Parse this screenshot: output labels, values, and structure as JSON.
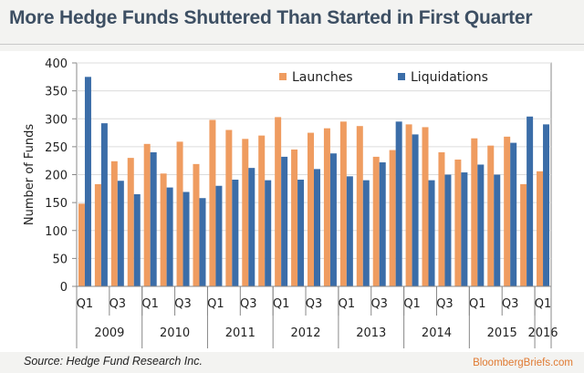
{
  "header": {
    "title": "More Hedge Funds Shuttered Than Started in First Quarter"
  },
  "footer": {
    "source": "Source: Hedge Fund Research Inc.",
    "brand": "BloombergBriefs.com"
  },
  "colors": {
    "launches": "#ef9c60",
    "liquidations": "#3b6da8",
    "axis": "#888888",
    "grid": "#dcdcdc"
  },
  "chart_data": {
    "type": "bar",
    "ylabel": "Number of Funds",
    "ylim": [
      0,
      400
    ],
    "yticks": [
      0,
      50,
      100,
      150,
      200,
      250,
      300,
      350,
      400
    ],
    "grid": true,
    "legend_position": "top-right",
    "categories": [
      "2009 Q1",
      "2009 Q2",
      "2009 Q3",
      "2009 Q4",
      "2010 Q1",
      "2010 Q2",
      "2010 Q3",
      "2010 Q4",
      "2011 Q1",
      "2011 Q2",
      "2011 Q3",
      "2011 Q4",
      "2012 Q1",
      "2012 Q2",
      "2012 Q3",
      "2012 Q4",
      "2013 Q1",
      "2013 Q2",
      "2013 Q3",
      "2013 Q4",
      "2014 Q1",
      "2014 Q2",
      "2014 Q3",
      "2014 Q4",
      "2015 Q1",
      "2015 Q2",
      "2015 Q3",
      "2015 Q4",
      "2016 Q1"
    ],
    "quarter_labels": [
      "Q1",
      "",
      "Q3",
      "",
      "Q1",
      "",
      "Q3",
      "",
      "Q1",
      "",
      "Q3",
      "",
      "Q1",
      "",
      "Q3",
      "",
      "Q1",
      "",
      "Q3",
      "",
      "Q1",
      "",
      "Q3",
      "",
      "Q1",
      "",
      "Q3",
      "",
      "Q1"
    ],
    "years": [
      {
        "label": "2009",
        "count": 4
      },
      {
        "label": "2010",
        "count": 4
      },
      {
        "label": "2011",
        "count": 4
      },
      {
        "label": "2012",
        "count": 4
      },
      {
        "label": "2013",
        "count": 4
      },
      {
        "label": "2014",
        "count": 4
      },
      {
        "label": "2015",
        "count": 4
      },
      {
        "label": "2016",
        "count": 1
      }
    ],
    "series": [
      {
        "name": "Launches",
        "values": [
          148,
          183,
          224,
          230,
          255,
          202,
          259,
          219,
          298,
          280,
          264,
          270,
          303,
          245,
          275,
          283,
          295,
          287,
          232,
          244,
          290,
          285,
          240,
          227,
          265,
          252,
          268,
          183,
          206
        ]
      },
      {
        "name": "Liquidations",
        "values": [
          375,
          292,
          189,
          165,
          240,
          177,
          169,
          158,
          180,
          191,
          212,
          190,
          232,
          191,
          210,
          238,
          197,
          190,
          222,
          295,
          272,
          190,
          200,
          204,
          218,
          200,
          257,
          304,
          290
        ]
      }
    ]
  }
}
